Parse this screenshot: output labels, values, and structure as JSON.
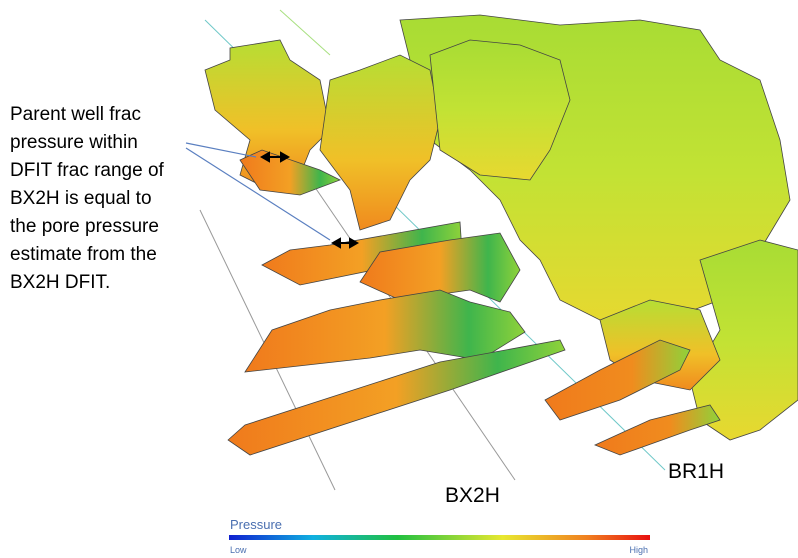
{
  "annotation": {
    "lines": [
      "Parent well frac",
      "pressure within",
      "DFIT frac range of",
      "BX2H is equal to",
      "the pore pressure",
      "estimate from the",
      "BX2H DFIT."
    ]
  },
  "wells": {
    "bx2h": "BX2H",
    "br1h": "BR1H"
  },
  "legend": {
    "title": "Pressure",
    "low": "Low",
    "high": "High"
  }
}
